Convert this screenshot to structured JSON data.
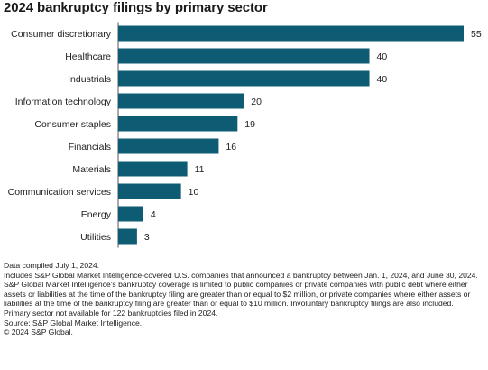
{
  "title": "2024 bankruptcy filings by primary sector",
  "colors": {
    "bar": "#0d5c73",
    "axis": "#555555"
  },
  "chart_data": {
    "type": "bar",
    "orientation": "horizontal",
    "title": "2024 bankruptcy filings by primary sector",
    "categories": [
      "Consumer discretionary",
      "Healthcare",
      "Industrials",
      "Information technology",
      "Consumer staples",
      "Financials",
      "Materials",
      "Communication services",
      "Energy",
      "Utilities"
    ],
    "values": [
      55,
      40,
      40,
      20,
      19,
      16,
      11,
      10,
      4,
      3
    ],
    "xlim": [
      0,
      55
    ],
    "grid": false,
    "data_labels": true
  },
  "notes": {
    "compiled": "Data compiled July 1, 2024.",
    "includes": "Includes S&P Global Market Intelligence-covered U.S. companies that announced a bankruptcy between Jan. 1, 2024, and June 30, 2024.",
    "coverage": "S&P Global Market Intelligence's bankruptcy coverage is limited to public companies or private companies with public debt where either assets or liabilities at the time of the bankruptcy filing are greater than or equal to $2 million, or private companies where either assets or liabilities at the time of the bankruptcy filing are greater than or equal to $10 million. Involuntary bankruptcy filings are also included.",
    "primary_sector": "Primary sector not available for 122 bankruptcies filed in 2024.",
    "source": "Source: S&P Global Market Intelligence.",
    "copyright": "© 2024 S&P Global."
  }
}
